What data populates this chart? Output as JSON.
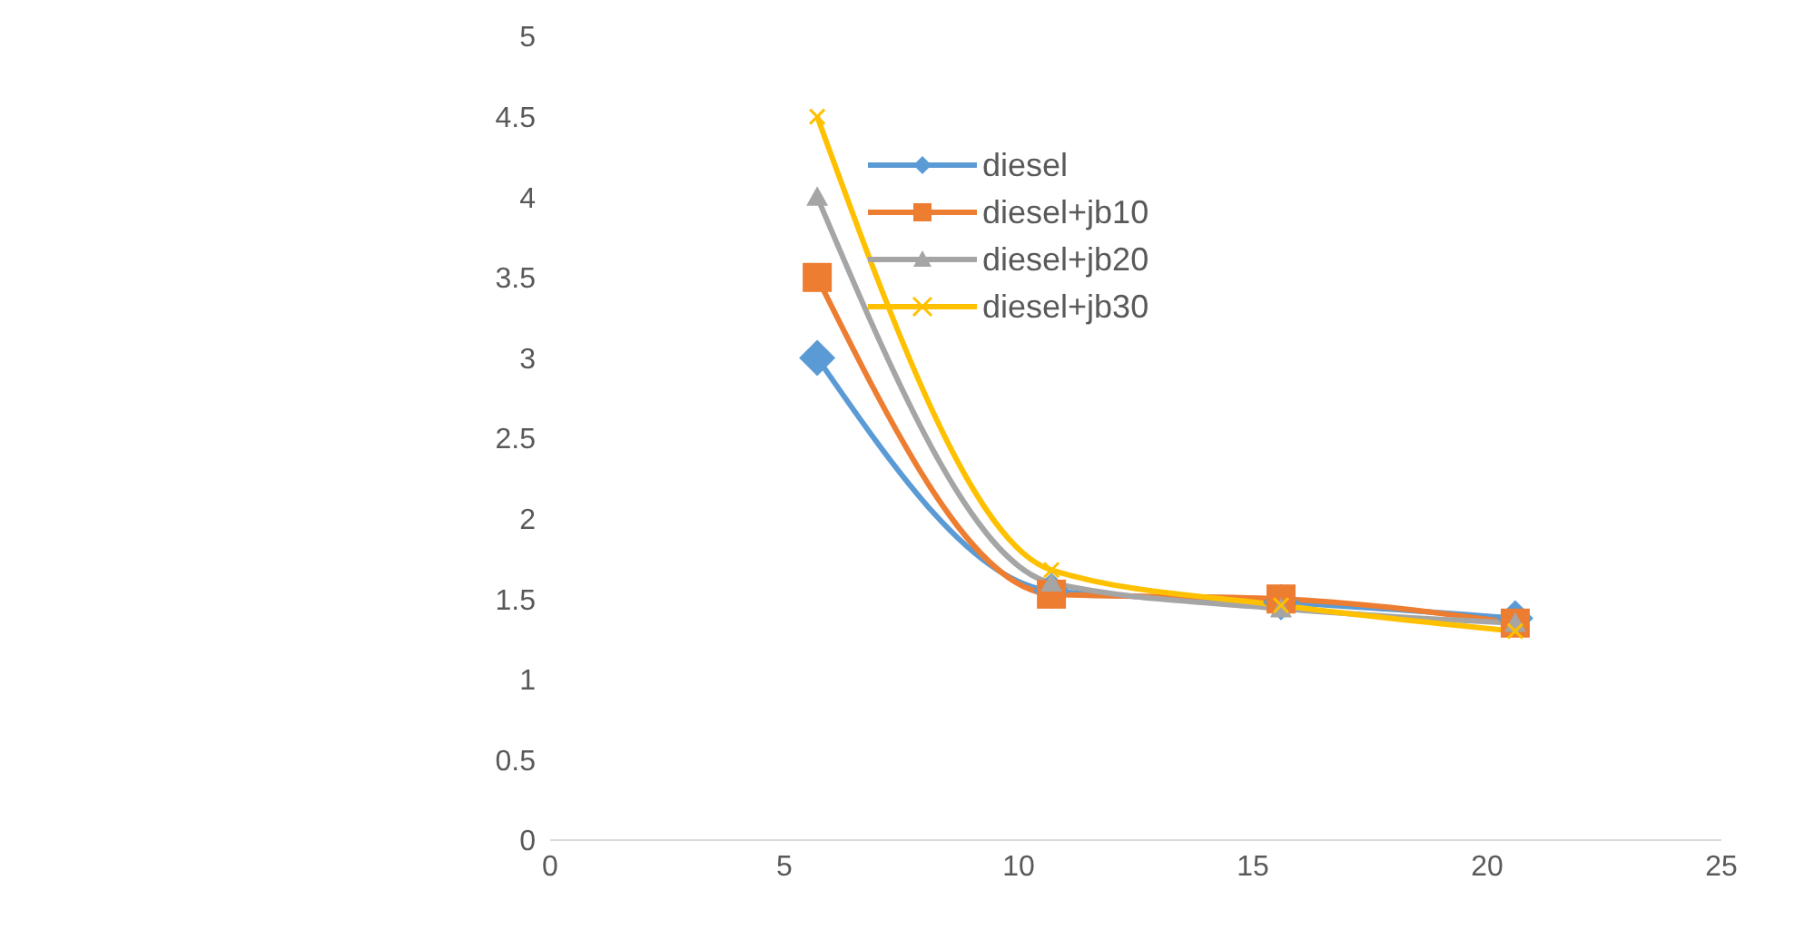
{
  "chart_data": {
    "type": "line",
    "xlim": [
      0,
      25
    ],
    "xticks": [
      0,
      5,
      10,
      15,
      20,
      25
    ],
    "ylim": [
      0,
      5
    ],
    "yticks": [
      0,
      0.5,
      1,
      1.5,
      2,
      2.5,
      3,
      3.5,
      4,
      4.5,
      5
    ],
    "grid": false,
    "legend": "top",
    "line_style": "solid",
    "x": [
      5.7,
      10.7,
      15.6,
      20.6
    ],
    "series": [
      {
        "name": "diesel",
        "color": "#5b9bd5",
        "marker": "diamond",
        "values": [
          3,
          1.55,
          1.48,
          1.38
        ]
      },
      {
        "name": "diesel+jb10",
        "color": "#ed7d31",
        "marker": "square",
        "values": [
          3.5,
          1.53,
          1.5,
          1.35
        ]
      },
      {
        "name": "diesel+jb20",
        "color": "#a5a5a5",
        "marker": "triangle",
        "values": [
          4,
          1.6,
          1.44,
          1.35
        ]
      },
      {
        "name": "diesel+jb30",
        "color": "#ffc000",
        "marker": "cross",
        "values": [
          4.5,
          1.68,
          1.46,
          1.3
        ]
      }
    ]
  }
}
